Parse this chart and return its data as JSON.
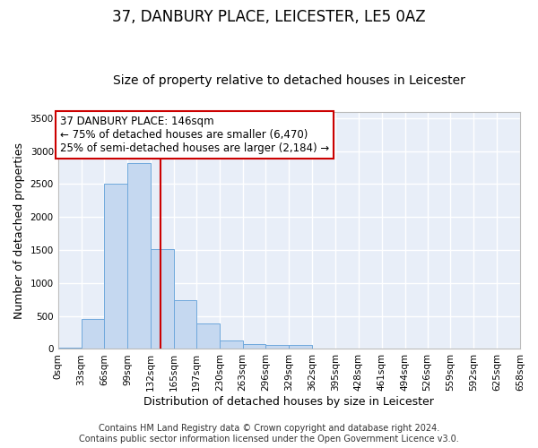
{
  "title": "37, DANBURY PLACE, LEICESTER, LE5 0AZ",
  "subtitle": "Size of property relative to detached houses in Leicester",
  "xlabel": "Distribution of detached houses by size in Leicester",
  "ylabel": "Number of detached properties",
  "footnote1": "Contains HM Land Registry data © Crown copyright and database right 2024.",
  "footnote2": "Contains public sector information licensed under the Open Government Licence v3.0.",
  "bar_edges": [
    0,
    33,
    66,
    99,
    132,
    165,
    197,
    230,
    263,
    296,
    329,
    362,
    395,
    428,
    461,
    494,
    526,
    559,
    592,
    625,
    658
  ],
  "bar_heights": [
    25,
    460,
    2510,
    2820,
    1520,
    740,
    390,
    135,
    70,
    55,
    55,
    0,
    0,
    0,
    0,
    0,
    0,
    0,
    0,
    0
  ],
  "bar_color": "#c5d8f0",
  "bar_edge_color": "#6fa8dc",
  "annotation_text_line1": "37 DANBURY PLACE: 146sqm",
  "annotation_text_line2": "← 75% of detached houses are smaller (6,470)",
  "annotation_text_line3": "25% of semi-detached houses are larger (2,184) →",
  "property_size": 146,
  "vline_color": "#cc0000",
  "ylim": [
    0,
    3600
  ],
  "xlim": [
    0,
    658
  ],
  "yticks": [
    0,
    500,
    1000,
    1500,
    2000,
    2500,
    3000,
    3500
  ],
  "xtick_labels": [
    "0sqm",
    "33sqm",
    "66sqm",
    "99sqm",
    "132sqm",
    "165sqm",
    "197sqm",
    "230sqm",
    "263sqm",
    "296sqm",
    "329sqm",
    "362sqm",
    "395sqm",
    "428sqm",
    "461sqm",
    "494sqm",
    "526sqm",
    "559sqm",
    "592sqm",
    "625sqm",
    "658sqm"
  ],
  "bg_color": "#e8eef8",
  "fig_bg_color": "#ffffff",
  "grid_color": "#ffffff",
  "title_fontsize": 12,
  "subtitle_fontsize": 10,
  "axis_label_fontsize": 9,
  "tick_fontsize": 7.5,
  "annotation_fontsize": 8.5,
  "footnote_fontsize": 7
}
